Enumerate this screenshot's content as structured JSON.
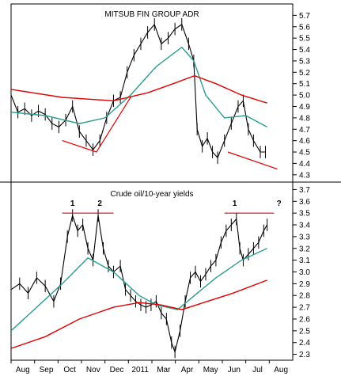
{
  "colors": {
    "price": "#000000",
    "ma_short": "#2a9d8f",
    "ma_long": "#e00000",
    "trend": "#e00000",
    "frame": "#000000"
  },
  "chart_data": [
    {
      "type": "line",
      "title": "MITSUB FIN GROUP ADR",
      "ylim": [
        4.25,
        5.8
      ],
      "yticks": [
        "5.7",
        "5.6",
        "5.5",
        "5.4",
        "5.3",
        "5.2",
        "5.1",
        "5.0",
        "4.9",
        "4.8",
        "4.7",
        "4.6",
        "4.5",
        "4.4",
        "4.3"
      ],
      "x_labels": [
        "Aug",
        "Sep",
        "Oct",
        "Nov",
        "Dec",
        "2011",
        "Mar",
        "Apr",
        "May",
        "Jun",
        "Jul",
        "Aug"
      ],
      "series": [
        {
          "role": "price",
          "style": "daily-bars",
          "points": [
            [
              0,
              5.0
            ],
            [
              8,
              4.85
            ],
            [
              16,
              4.88
            ],
            [
              24,
              4.82
            ],
            [
              32,
              4.86
            ],
            [
              40,
              4.83
            ],
            [
              48,
              4.75
            ],
            [
              56,
              4.72
            ],
            [
              64,
              4.78
            ],
            [
              72,
              4.9
            ],
            [
              80,
              4.68
            ],
            [
              88,
              4.6
            ],
            [
              96,
              4.52
            ],
            [
              104,
              4.6
            ],
            [
              112,
              4.8
            ],
            [
              120,
              4.95
            ],
            [
              128,
              4.98
            ],
            [
              136,
              5.2
            ],
            [
              144,
              5.35
            ],
            [
              152,
              5.45
            ],
            [
              160,
              5.55
            ],
            [
              168,
              5.62
            ],
            [
              176,
              5.45
            ],
            [
              184,
              5.5
            ],
            [
              192,
              5.58
            ],
            [
              200,
              5.62
            ],
            [
              208,
              5.45
            ],
            [
              214,
              5.3
            ],
            [
              218,
              4.7
            ],
            [
              224,
              4.55
            ],
            [
              230,
              4.62
            ],
            [
              236,
              4.5
            ],
            [
              242,
              4.45
            ],
            [
              250,
              4.6
            ],
            [
              258,
              4.75
            ],
            [
              266,
              4.9
            ],
            [
              272,
              4.95
            ],
            [
              278,
              4.7
            ],
            [
              284,
              4.6
            ],
            [
              292,
              4.5
            ],
            [
              298,
              4.5
            ]
          ]
        },
        {
          "role": "moving-average-short",
          "points": [
            [
              0,
              4.85
            ],
            [
              40,
              4.82
            ],
            [
              80,
              4.75
            ],
            [
              110,
              4.8
            ],
            [
              140,
              5.0
            ],
            [
              170,
              5.25
            ],
            [
              200,
              5.42
            ],
            [
              214,
              5.3
            ],
            [
              228,
              5.0
            ],
            [
              250,
              4.8
            ],
            [
              275,
              4.82
            ],
            [
              300,
              4.72
            ]
          ]
        },
        {
          "role": "moving-average-long",
          "points": [
            [
              0,
              5.05
            ],
            [
              60,
              4.98
            ],
            [
              120,
              4.95
            ],
            [
              160,
              5.02
            ],
            [
              190,
              5.1
            ],
            [
              215,
              5.17
            ],
            [
              240,
              5.1
            ],
            [
              270,
              5.0
            ],
            [
              300,
              4.93
            ]
          ]
        }
      ],
      "trendlines": [
        [
          [
            60,
            4.6
          ],
          [
            100,
            4.5
          ],
          [
            140,
            4.98
          ]
        ],
        [
          [
            254,
            4.5
          ],
          [
            312,
            4.35
          ]
        ]
      ]
    },
    {
      "type": "line",
      "title": "Crude oil/10-year yields",
      "ylim": [
        2.25,
        3.75
      ],
      "yticks": [
        "3.7",
        "3.6",
        "3.5",
        "3.4",
        "3.3",
        "3.2",
        "3.1",
        "3.0",
        "2.9",
        "2.8",
        "2.7",
        "2.6",
        "2.5",
        "2.4",
        "2.3"
      ],
      "x_labels": [
        "Aug",
        "Sep",
        "Oct",
        "Nov",
        "Dec",
        "2011",
        "Mar",
        "Apr",
        "May",
        "Jun",
        "Jul",
        "Aug"
      ],
      "annotations": [
        {
          "text": "1",
          "x": 72,
          "y": 3.56
        },
        {
          "text": "2",
          "x": 104,
          "y": 3.56
        },
        {
          "text": "1",
          "x": 262,
          "y": 3.56
        },
        {
          "text": "?",
          "x": 314,
          "y": 3.56
        }
      ],
      "resistance_lines": [
        [
          [
            60,
            3.5
          ],
          [
            120,
            3.5
          ]
        ],
        [
          [
            250,
            3.5
          ],
          [
            308,
            3.5
          ]
        ]
      ],
      "series": [
        {
          "role": "price",
          "style": "daily-bars",
          "points": [
            [
              0,
              2.85
            ],
            [
              10,
              2.9
            ],
            [
              20,
              2.82
            ],
            [
              30,
              2.95
            ],
            [
              40,
              2.88
            ],
            [
              50,
              2.75
            ],
            [
              58,
              2.9
            ],
            [
              66,
              3.3
            ],
            [
              72,
              3.48
            ],
            [
              78,
              3.35
            ],
            [
              84,
              3.4
            ],
            [
              90,
              3.2
            ],
            [
              96,
              3.1
            ],
            [
              102,
              3.48
            ],
            [
              108,
              3.2
            ],
            [
              114,
              3.05
            ],
            [
              120,
              3.0
            ],
            [
              128,
              3.05
            ],
            [
              134,
              2.85
            ],
            [
              140,
              2.8
            ],
            [
              146,
              2.75
            ],
            [
              152,
              2.72
            ],
            [
              158,
              2.7
            ],
            [
              164,
              2.72
            ],
            [
              170,
              2.75
            ],
            [
              176,
              2.65
            ],
            [
              182,
              2.6
            ],
            [
              188,
              2.4
            ],
            [
              192,
              2.32
            ],
            [
              198,
              2.5
            ],
            [
              204,
              2.75
            ],
            [
              210,
              2.95
            ],
            [
              216,
              3.0
            ],
            [
              222,
              2.92
            ],
            [
              228,
              2.98
            ],
            [
              234,
              3.05
            ],
            [
              240,
              3.1
            ],
            [
              246,
              3.25
            ],
            [
              252,
              3.35
            ],
            [
              258,
              3.4
            ],
            [
              264,
              3.45
            ],
            [
              268,
              3.2
            ],
            [
              272,
              3.1
            ],
            [
              278,
              3.15
            ],
            [
              284,
              3.2
            ],
            [
              290,
              3.25
            ],
            [
              296,
              3.35
            ],
            [
              300,
              3.4
            ]
          ]
        },
        {
          "role": "moving-average-short",
          "points": [
            [
              0,
              2.5
            ],
            [
              30,
              2.7
            ],
            [
              60,
              2.9
            ],
            [
              90,
              3.12
            ],
            [
              120,
              3.0
            ],
            [
              150,
              2.8
            ],
            [
              170,
              2.72
            ],
            [
              195,
              2.68
            ],
            [
              215,
              2.8
            ],
            [
              240,
              2.95
            ],
            [
              270,
              3.1
            ],
            [
              300,
              3.2
            ]
          ]
        },
        {
          "role": "moving-average-long",
          "points": [
            [
              0,
              2.35
            ],
            [
              40,
              2.45
            ],
            [
              80,
              2.6
            ],
            [
              120,
              2.7
            ],
            [
              150,
              2.74
            ],
            [
              175,
              2.72
            ],
            [
              200,
              2.68
            ],
            [
              230,
              2.75
            ],
            [
              260,
              2.82
            ],
            [
              300,
              2.93
            ]
          ]
        }
      ]
    }
  ]
}
